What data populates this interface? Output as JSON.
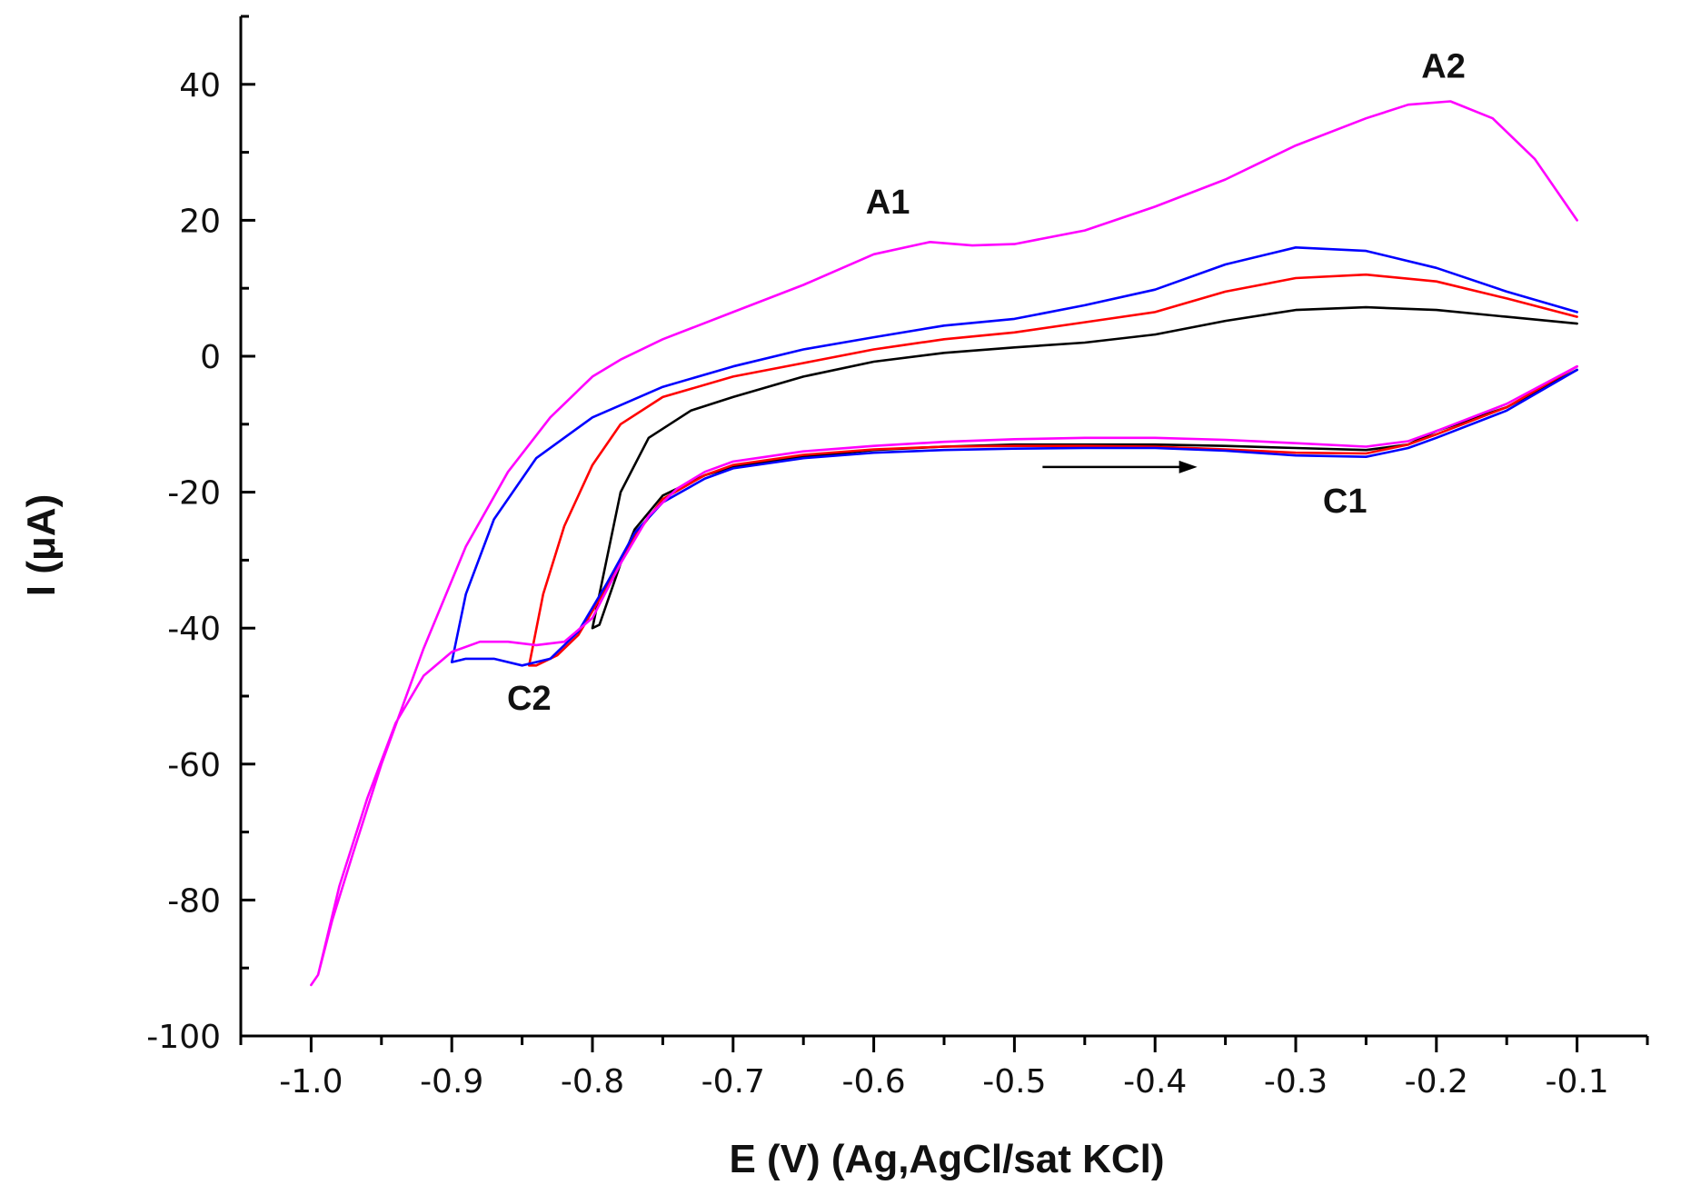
{
  "chart_data": {
    "type": "line",
    "xlabel": "E (V) (Ag,AgCl/sat KCl)",
    "ylabel": "I (μA)",
    "xlim": [
      -1.05,
      -0.05
    ],
    "ylim": [
      -100,
      50
    ],
    "x_ticks": [
      -1.0,
      -0.9,
      -0.8,
      -0.7,
      -0.6,
      -0.5,
      -0.4,
      -0.3,
      -0.2,
      -0.1
    ],
    "x_tick_labels": [
      "-1.0",
      "-0.9",
      "-0.8",
      "-0.7",
      "-0.6",
      "-0.5",
      "-0.4",
      "-0.3",
      "-0.2",
      "-0.1"
    ],
    "y_ticks": [
      -100,
      -80,
      -60,
      -40,
      -20,
      0,
      20,
      40
    ],
    "y_tick_labels": [
      "-100",
      "-80",
      "-60",
      "-40",
      "-20",
      "0",
      "20",
      "40"
    ],
    "annotations": [
      {
        "text": "A1",
        "x": -0.59,
        "y": 21
      },
      {
        "text": "A2",
        "x": -0.195,
        "y": 41
      },
      {
        "text": "C1",
        "x": -0.265,
        "y": -23
      },
      {
        "text": "C2",
        "x": -0.845,
        "y": -52
      }
    ],
    "arrow": {
      "from": [
        -0.48,
        -16.3
      ],
      "to": [
        -0.37,
        -16.3
      ],
      "meaning": "scan direction"
    },
    "series": [
      {
        "name": "black",
        "color": "#000000",
        "points": [
          [
            -0.1,
            4.8
          ],
          [
            -0.15,
            5.8
          ],
          [
            -0.2,
            6.8
          ],
          [
            -0.25,
            7.2
          ],
          [
            -0.3,
            6.8
          ],
          [
            -0.35,
            5.2
          ],
          [
            -0.4,
            3.2
          ],
          [
            -0.45,
            2.0
          ],
          [
            -0.5,
            1.3
          ],
          [
            -0.55,
            0.5
          ],
          [
            -0.6,
            -0.8
          ],
          [
            -0.65,
            -3.0
          ],
          [
            -0.7,
            -6.0
          ],
          [
            -0.73,
            -8.0
          ],
          [
            -0.76,
            -12.0
          ],
          [
            -0.78,
            -20.0
          ],
          [
            -0.79,
            -30.0
          ],
          [
            -0.8,
            -40.0
          ],
          [
            -0.795,
            -39.5
          ],
          [
            -0.78,
            -30.5
          ],
          [
            -0.77,
            -25.5
          ],
          [
            -0.75,
            -20.5
          ],
          [
            -0.72,
            -17.5
          ],
          [
            -0.7,
            -16.3
          ],
          [
            -0.65,
            -14.8
          ],
          [
            -0.6,
            -13.8
          ],
          [
            -0.55,
            -13.3
          ],
          [
            -0.5,
            -13.0
          ],
          [
            -0.45,
            -13.0
          ],
          [
            -0.4,
            -13.0
          ],
          [
            -0.35,
            -13.2
          ],
          [
            -0.3,
            -13.5
          ],
          [
            -0.25,
            -13.8
          ],
          [
            -0.22,
            -13.0
          ],
          [
            -0.2,
            -11.0
          ],
          [
            -0.15,
            -7.5
          ],
          [
            -0.1,
            -2.0
          ]
        ]
      },
      {
        "name": "red",
        "color": "#ff0000",
        "points": [
          [
            -0.1,
            5.8
          ],
          [
            -0.15,
            8.5
          ],
          [
            -0.2,
            11.0
          ],
          [
            -0.25,
            12.0
          ],
          [
            -0.3,
            11.5
          ],
          [
            -0.35,
            9.5
          ],
          [
            -0.4,
            6.5
          ],
          [
            -0.45,
            5.0
          ],
          [
            -0.5,
            3.5
          ],
          [
            -0.55,
            2.5
          ],
          [
            -0.6,
            1.0
          ],
          [
            -0.65,
            -1.0
          ],
          [
            -0.7,
            -3.0
          ],
          [
            -0.75,
            -6.0
          ],
          [
            -0.78,
            -10.0
          ],
          [
            -0.8,
            -16.0
          ],
          [
            -0.82,
            -25.0
          ],
          [
            -0.835,
            -35.0
          ],
          [
            -0.845,
            -45.5
          ],
          [
            -0.84,
            -45.5
          ],
          [
            -0.825,
            -44.0
          ],
          [
            -0.81,
            -41.0
          ],
          [
            -0.79,
            -34.0
          ],
          [
            -0.77,
            -26.5
          ],
          [
            -0.75,
            -21.0
          ],
          [
            -0.72,
            -17.5
          ],
          [
            -0.7,
            -16.0
          ],
          [
            -0.65,
            -14.5
          ],
          [
            -0.6,
            -13.7
          ],
          [
            -0.55,
            -13.3
          ],
          [
            -0.5,
            -13.2
          ],
          [
            -0.45,
            -13.2
          ],
          [
            -0.4,
            -13.3
          ],
          [
            -0.35,
            -13.7
          ],
          [
            -0.3,
            -14.2
          ],
          [
            -0.25,
            -14.3
          ],
          [
            -0.22,
            -13.0
          ],
          [
            -0.2,
            -11.5
          ],
          [
            -0.15,
            -7.5
          ],
          [
            -0.1,
            -1.5
          ]
        ]
      },
      {
        "name": "blue",
        "color": "#0000ff",
        "points": [
          [
            -0.1,
            6.5
          ],
          [
            -0.15,
            9.5
          ],
          [
            -0.2,
            13.0
          ],
          [
            -0.25,
            15.5
          ],
          [
            -0.3,
            16.0
          ],
          [
            -0.35,
            13.5
          ],
          [
            -0.4,
            9.8
          ],
          [
            -0.45,
            7.5
          ],
          [
            -0.5,
            5.5
          ],
          [
            -0.55,
            4.5
          ],
          [
            -0.6,
            2.8
          ],
          [
            -0.65,
            1.0
          ],
          [
            -0.7,
            -1.5
          ],
          [
            -0.75,
            -4.5
          ],
          [
            -0.8,
            -9.0
          ],
          [
            -0.84,
            -15.0
          ],
          [
            -0.87,
            -24.0
          ],
          [
            -0.89,
            -35.0
          ],
          [
            -0.9,
            -45.0
          ],
          [
            -0.89,
            -44.5
          ],
          [
            -0.87,
            -44.5
          ],
          [
            -0.85,
            -45.5
          ],
          [
            -0.83,
            -44.5
          ],
          [
            -0.81,
            -40.5
          ],
          [
            -0.79,
            -33.5
          ],
          [
            -0.77,
            -26.0
          ],
          [
            -0.75,
            -21.5
          ],
          [
            -0.72,
            -18.0
          ],
          [
            -0.7,
            -16.5
          ],
          [
            -0.65,
            -15.0
          ],
          [
            -0.6,
            -14.2
          ],
          [
            -0.55,
            -13.8
          ],
          [
            -0.5,
            -13.6
          ],
          [
            -0.45,
            -13.5
          ],
          [
            -0.4,
            -13.5
          ],
          [
            -0.35,
            -13.9
          ],
          [
            -0.3,
            -14.6
          ],
          [
            -0.25,
            -14.8
          ],
          [
            -0.22,
            -13.5
          ],
          [
            -0.2,
            -12.0
          ],
          [
            -0.15,
            -8.0
          ],
          [
            -0.1,
            -2.0
          ]
        ]
      },
      {
        "name": "magenta",
        "color": "#ff00ff",
        "points": [
          [
            -0.1,
            20.0
          ],
          [
            -0.13,
            29.0
          ],
          [
            -0.16,
            35.0
          ],
          [
            -0.19,
            37.5
          ],
          [
            -0.22,
            37.0
          ],
          [
            -0.25,
            35.0
          ],
          [
            -0.3,
            31.0
          ],
          [
            -0.35,
            26.0
          ],
          [
            -0.4,
            22.0
          ],
          [
            -0.45,
            18.5
          ],
          [
            -0.5,
            16.5
          ],
          [
            -0.53,
            16.3
          ],
          [
            -0.56,
            16.8
          ],
          [
            -0.6,
            15.0
          ],
          [
            -0.65,
            10.5
          ],
          [
            -0.7,
            6.5
          ],
          [
            -0.75,
            2.5
          ],
          [
            -0.78,
            -0.5
          ],
          [
            -0.8,
            -3.0
          ],
          [
            -0.83,
            -9.0
          ],
          [
            -0.86,
            -17.0
          ],
          [
            -0.89,
            -28.0
          ],
          [
            -0.92,
            -43.0
          ],
          [
            -0.95,
            -60.0
          ],
          [
            -0.97,
            -73.0
          ],
          [
            -0.985,
            -83.0
          ],
          [
            -0.995,
            -91.0
          ],
          [
            -1.0,
            -92.5
          ],
          [
            -0.995,
            -91.0
          ],
          [
            -0.98,
            -78.0
          ],
          [
            -0.96,
            -65.0
          ],
          [
            -0.94,
            -54.0
          ],
          [
            -0.92,
            -47.0
          ],
          [
            -0.9,
            -43.5
          ],
          [
            -0.88,
            -42.0
          ],
          [
            -0.86,
            -42.0
          ],
          [
            -0.84,
            -42.5
          ],
          [
            -0.82,
            -42.0
          ],
          [
            -0.8,
            -38.5
          ],
          [
            -0.78,
            -30.5
          ],
          [
            -0.76,
            -23.5
          ],
          [
            -0.74,
            -19.5
          ],
          [
            -0.72,
            -17.0
          ],
          [
            -0.7,
            -15.5
          ],
          [
            -0.65,
            -14.0
          ],
          [
            -0.6,
            -13.2
          ],
          [
            -0.55,
            -12.6
          ],
          [
            -0.5,
            -12.2
          ],
          [
            -0.45,
            -12.0
          ],
          [
            -0.4,
            -12.0
          ],
          [
            -0.35,
            -12.3
          ],
          [
            -0.3,
            -12.8
          ],
          [
            -0.25,
            -13.3
          ],
          [
            -0.22,
            -12.5
          ],
          [
            -0.2,
            -11.0
          ],
          [
            -0.15,
            -7.0
          ],
          [
            -0.1,
            -1.5
          ]
        ]
      }
    ]
  }
}
